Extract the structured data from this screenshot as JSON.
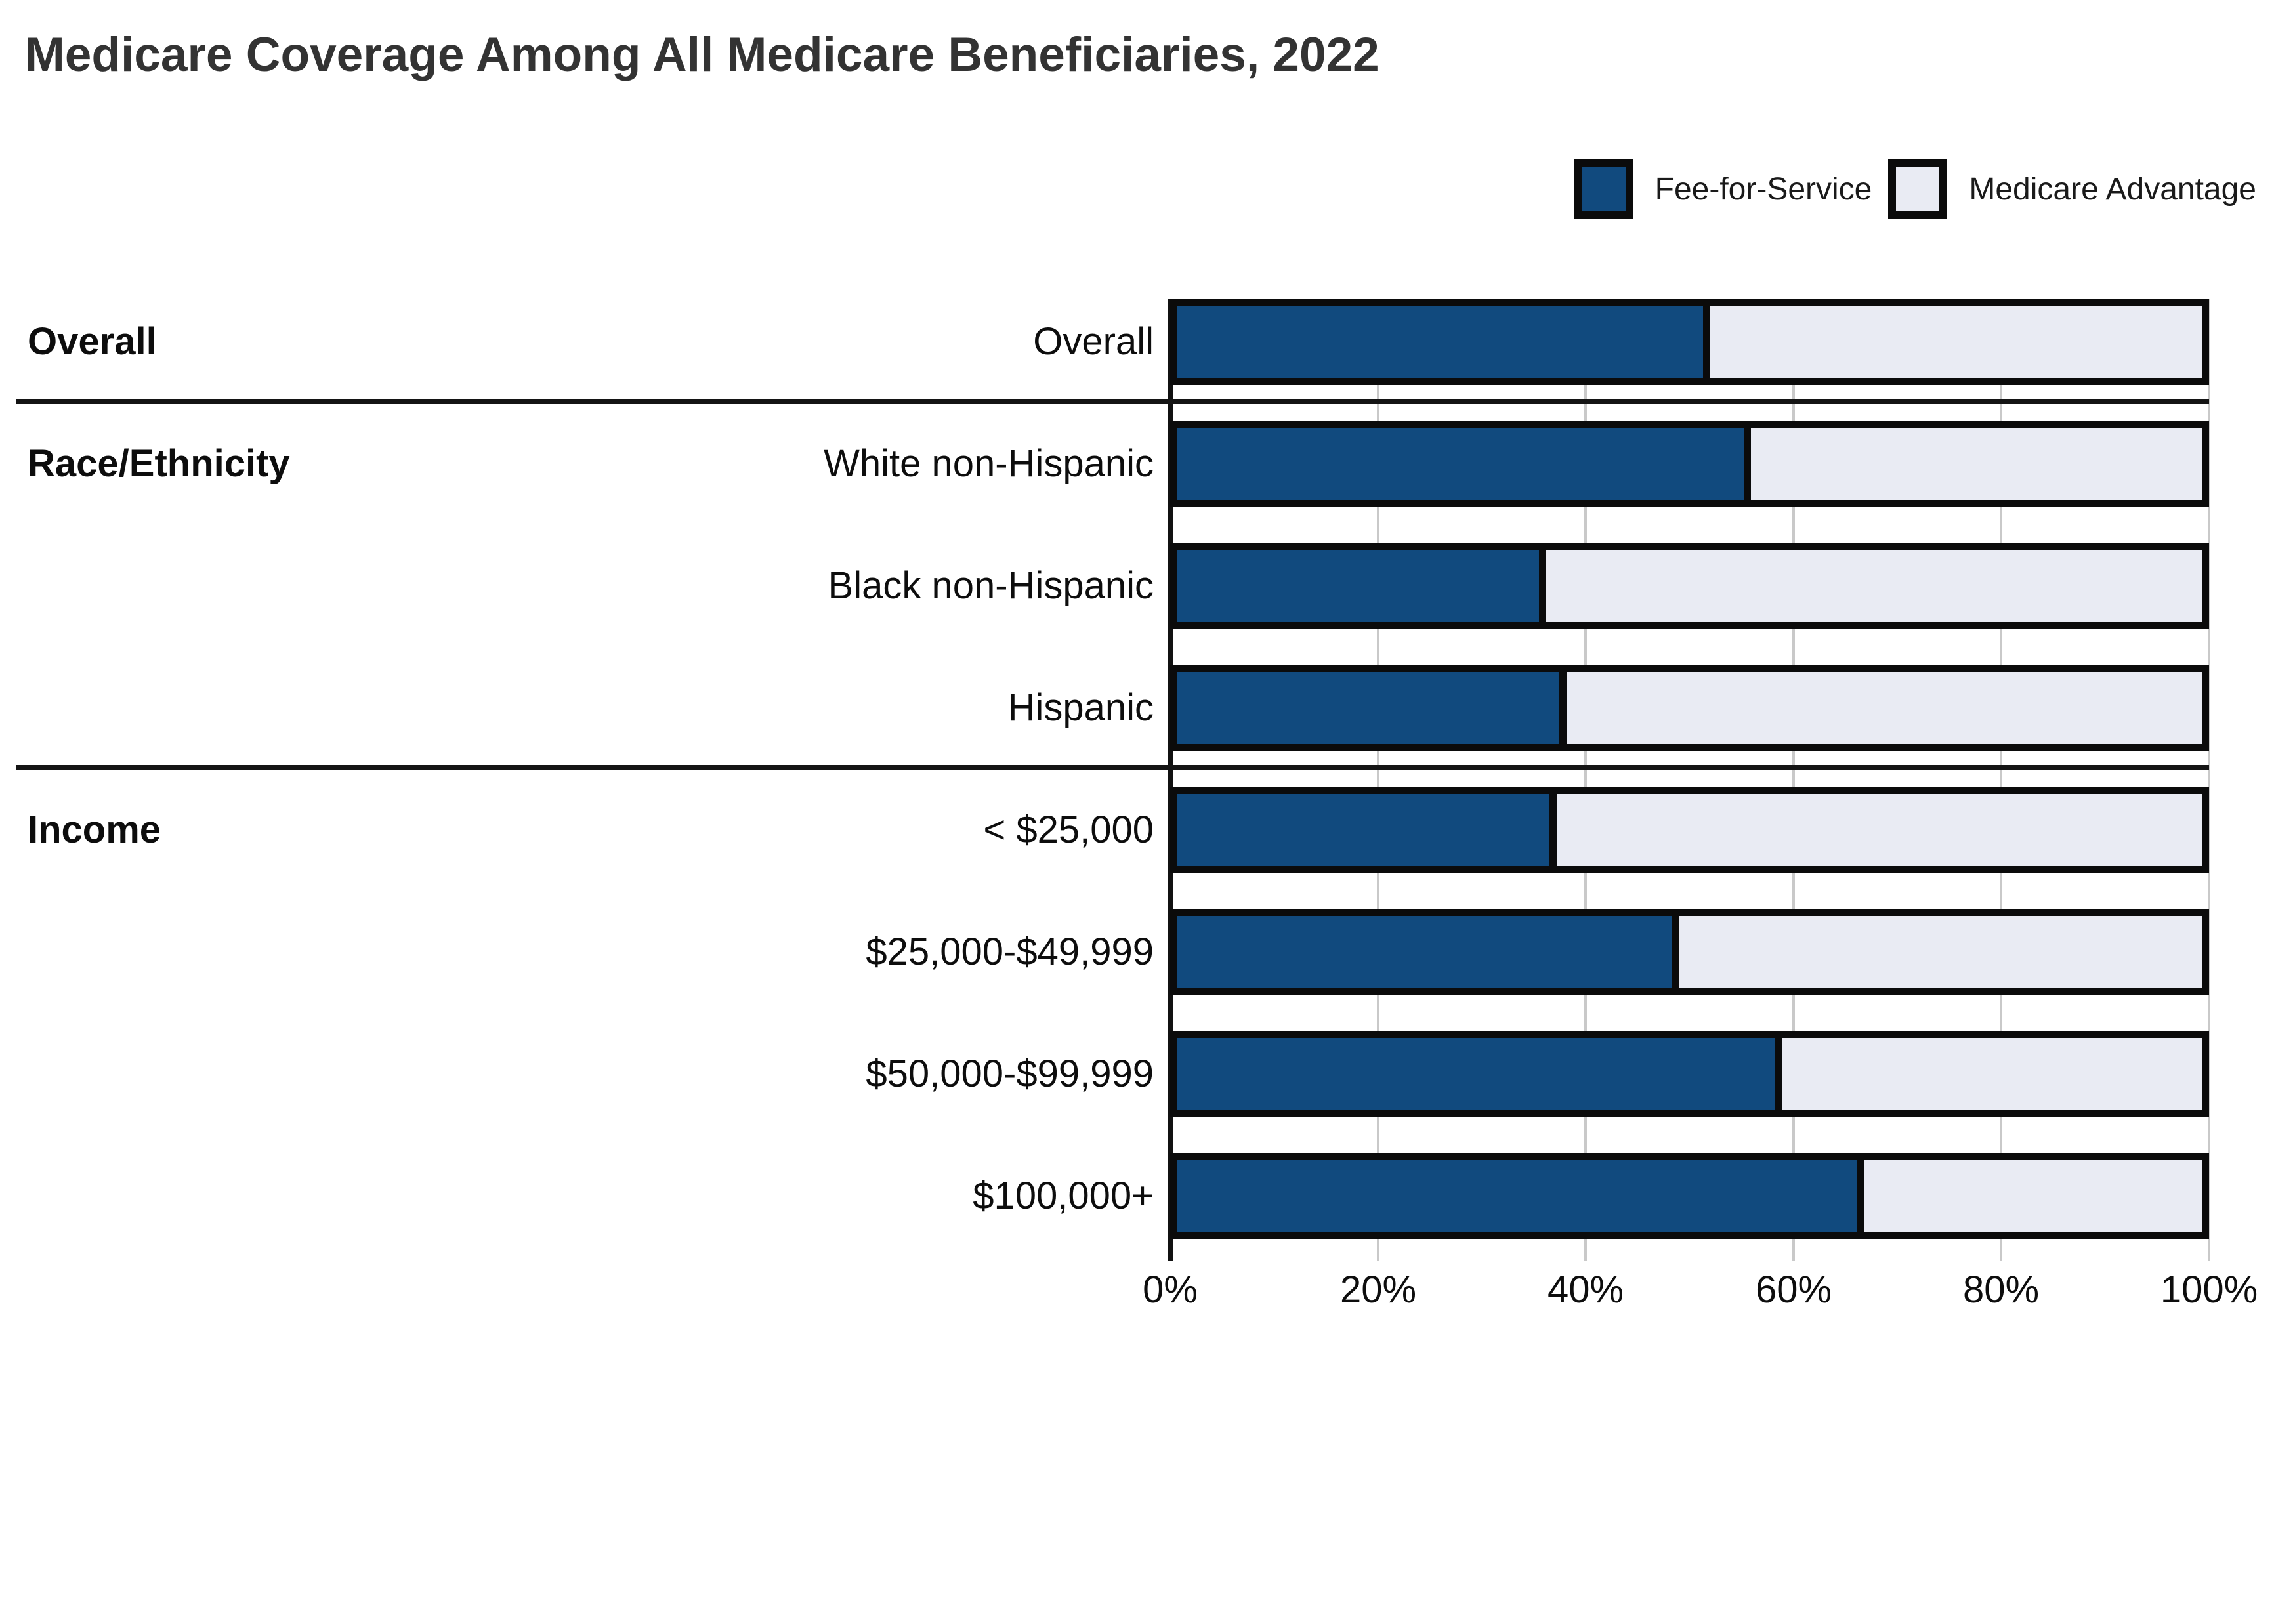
{
  "title": "Medicare Coverage Among All Medicare Beneficiaries, 2022",
  "legend": {
    "items": [
      {
        "label": "Fee-for-Service",
        "color": "#114a7e"
      },
      {
        "label": "Medicare Advantage",
        "color": "#e9ebf3"
      }
    ]
  },
  "chart_data": {
    "type": "bar",
    "stacked": true,
    "orientation": "horizontal",
    "title": "Medicare Coverage Among All Medicare Beneficiaries, 2022",
    "categories": [
      "Overall",
      "White non-Hispanic",
      "Black non-Hispanic",
      "Hispanic",
      "< $25,000",
      "$25,000-$49,999",
      "$50,000-$99,999",
      "$100,000+"
    ],
    "series": [
      {
        "name": "Fee-for-Service",
        "color": "#114a7e",
        "values": [
          52,
          56,
          36,
          38,
          37,
          49,
          59,
          67
        ]
      },
      {
        "name": "Medicare Advantage",
        "color": "#e9ebf3",
        "values": [
          48,
          44,
          64,
          62,
          63,
          51,
          41,
          33
        ]
      }
    ],
    "sections": [
      {
        "label": "Overall",
        "start_row": 0,
        "row_count": 1
      },
      {
        "label": "Race/Ethnicity",
        "start_row": 1,
        "row_count": 3
      },
      {
        "label": "Income",
        "start_row": 4,
        "row_count": 4
      }
    ],
    "x_ticks": [
      "0%",
      "20%",
      "40%",
      "60%",
      "80%",
      "100%"
    ],
    "xlim": [
      0,
      100
    ],
    "grid": true,
    "legend_position": "top-right",
    "colors": {
      "fee_for_service": "#114a7e",
      "medicare_advantage": "#e9ebf3",
      "bar_outline": "#0b0b0b",
      "gridline": "#c9c9c9",
      "separator": "#141414"
    }
  }
}
